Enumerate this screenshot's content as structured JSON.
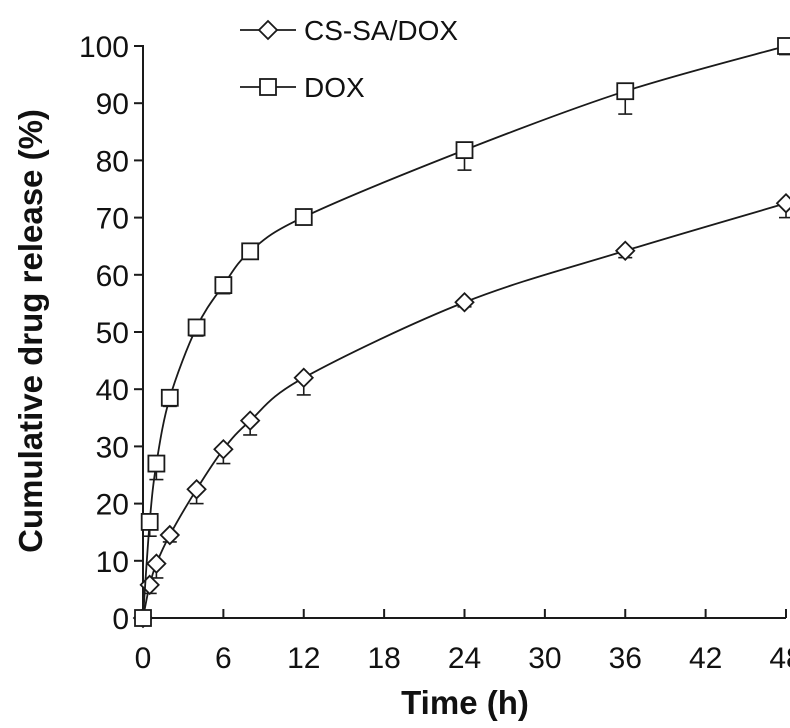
{
  "chart_data": {
    "type": "line",
    "title": "",
    "xlabel": "Time (h)",
    "ylabel": "Cumulative drug release (%)",
    "xlim": [
      0,
      48
    ],
    "ylim": [
      0,
      100
    ],
    "x_ticks": [
      0,
      6,
      12,
      18,
      24,
      30,
      36,
      42,
      48
    ],
    "y_ticks": [
      0,
      10,
      20,
      30,
      40,
      50,
      60,
      70,
      80,
      90,
      100
    ],
    "grid": false,
    "legend_position": "top-left",
    "series": [
      {
        "name": "CS-SA/DOX",
        "marker": "diamond",
        "x": [
          0,
          0.5,
          1,
          2,
          4,
          6,
          8,
          12,
          24,
          36,
          48
        ],
        "y": [
          0,
          5.8,
          9.5,
          14.5,
          22.5,
          29.5,
          34.5,
          42,
          55.2,
          64.2,
          72.5
        ],
        "error": [
          0,
          1.5,
          2.5,
          1.2,
          2.5,
          2.5,
          2.5,
          3,
          0.8,
          1.2,
          2.5
        ]
      },
      {
        "name": "DOX",
        "marker": "square",
        "x": [
          0,
          0.5,
          1,
          2,
          4,
          6,
          8,
          12,
          24,
          36,
          48
        ],
        "y": [
          0,
          16.8,
          27,
          38.5,
          50.8,
          58.2,
          64.1,
          70.1,
          81.8,
          92.1,
          100
        ],
        "error": [
          0,
          2.5,
          2.8,
          1.5,
          1.5,
          1.5,
          1,
          1,
          3.5,
          4,
          1.5
        ]
      }
    ],
    "colors": {
      "line": "#1a1a1a",
      "marker_fill": "#ffffff"
    }
  }
}
